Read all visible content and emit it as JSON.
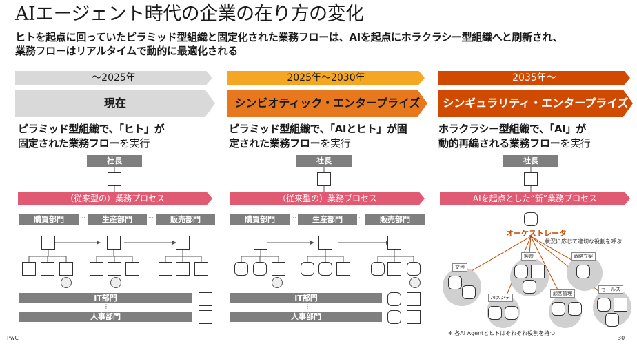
{
  "title": "AIエージェント時代の企業の在り方の変化",
  "subtitle_line1": "ヒトを起点に回っていたピラミッド型組織と固定化された業務フローは、AIを起点にホラクラシー型組織へと刷新され、",
  "subtitle_line2": "業務フローはリアルタイムで動的に最適化される",
  "columns": [
    {
      "period": "～2025年",
      "stage": "現在",
      "desc_line1_bold": "ピラミッド型組織で、「ヒト」が",
      "desc_line2_bold": "固定された業務フロー",
      "desc_line2_normal": "を実行",
      "president": "社長",
      "process": "（従来型の）業務プロセス",
      "depts": [
        "購買部門",
        "生産部門",
        "販売部門"
      ],
      "dots": "···",
      "it": "IT部門",
      "hr": "人事部門",
      "colon": "⋮"
    },
    {
      "period": "2025年～2030年",
      "stage": "シンビオティック・エンタープライズ",
      "desc_line1_bold": "ピラミッド型組織で、「AIとヒト」が固",
      "desc_line2_bold": "定された業務フロー",
      "desc_line2_normal": "を実行",
      "president": "社長",
      "process": "（従来型の）業務プロセス",
      "depts": [
        "購買部門",
        "生産部門",
        "販売部門"
      ],
      "dots": "···",
      "it": "IT部門",
      "hr": "人事部門",
      "colon": "⋮"
    },
    {
      "period": "2035年～",
      "stage": "シンギュラリティ・エンタープライズ",
      "desc_line1_bold": "ホラクラシー型組織で、「AI」が",
      "desc_line2_bold": "動的再編される業務フロー",
      "desc_line2_normal": "を実行",
      "president": "社長",
      "process": "AIを起点とした“新”業務プロセス",
      "orchestrator": "オーケストレータ",
      "orchestrator_note": "状況に応じて適切な役割を呼ぶ",
      "circles": [
        "交渉",
        "製造",
        "戦略立案",
        "AIメンテ",
        "顧客管理",
        "セールス"
      ],
      "footnote": "※ 各AI Agentとヒトはそれぞれ役割を持つ"
    }
  ],
  "footer_brand": "PwC",
  "page_number": "30",
  "colors": {
    "gray_band": "#d9d9d9",
    "orange_light": "#f5a623",
    "orange_stage": "#e8781e",
    "orange_dark": "#d04a02",
    "pink": "#e05a72"
  },
  "icons": [
    "person-icon",
    "robot-icon",
    "globe-icon"
  ]
}
